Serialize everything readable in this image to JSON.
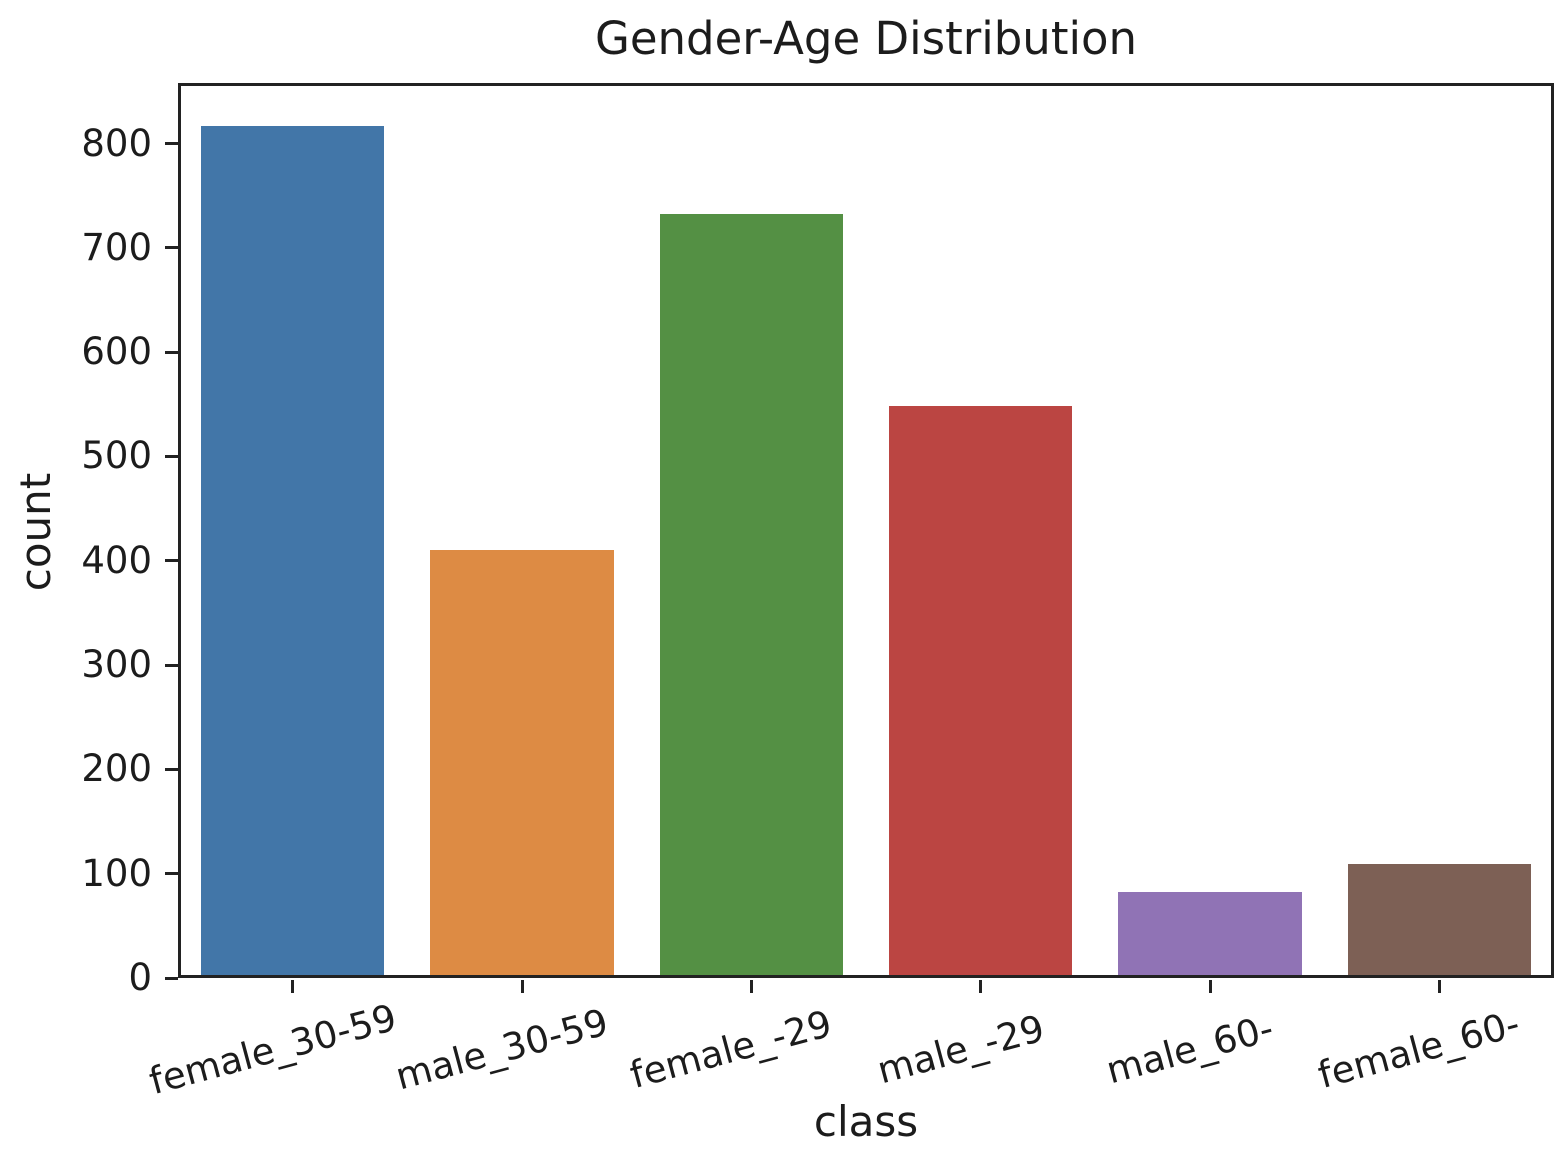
{
  "chart_data": {
    "type": "bar",
    "title": "Gender-Age Distribution",
    "xlabel": "class",
    "ylabel": "count",
    "categories": [
      "female_30-59",
      "male_30-59",
      "female_-29",
      "male_-29",
      "male_60-",
      "female_60-"
    ],
    "values": [
      817,
      410,
      732,
      548,
      82,
      109
    ],
    "bar_colors": [
      "#4276a8",
      "#dd8b44",
      "#549044",
      "#bb4542",
      "#9073b5",
      "#7d6055"
    ],
    "yticks": [
      0,
      100,
      200,
      300,
      400,
      500,
      600,
      700,
      800
    ],
    "ylim": [
      0,
      858
    ],
    "grid": false,
    "legend": false,
    "x_tick_rotation_deg": 15,
    "text_color": "#1c1c1c",
    "background_color": "#ffffff"
  }
}
